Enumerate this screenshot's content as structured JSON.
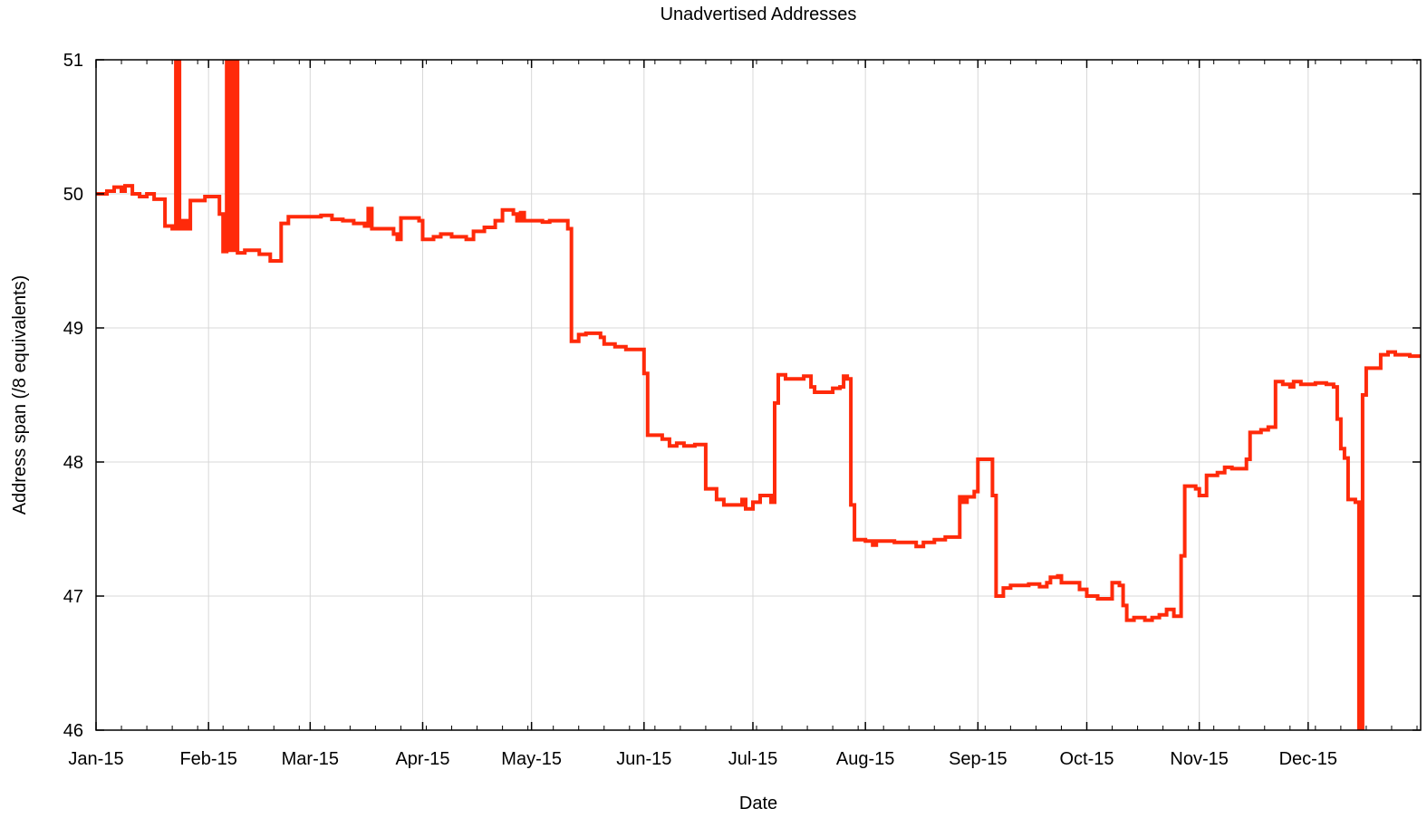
{
  "chart_data": {
    "type": "line",
    "title": "Unadvertised Addresses",
    "xlabel": "Date",
    "ylabel": "Address span (/8 equivalents)",
    "ylim": [
      46,
      51
    ],
    "xlim": [
      "2015-01-01",
      "2016-01-01"
    ],
    "yticks": [
      {
        "value": 46,
        "label": "46"
      },
      {
        "value": 47,
        "label": "47"
      },
      {
        "value": 48,
        "label": "48"
      },
      {
        "value": 49,
        "label": "49"
      },
      {
        "value": 50,
        "label": "50"
      },
      {
        "value": 51,
        "label": "51"
      }
    ],
    "xticks": [
      {
        "date": "2015-01-01",
        "label": "Jan-15"
      },
      {
        "date": "2015-02-01",
        "label": "Feb-15"
      },
      {
        "date": "2015-03-01",
        "label": "Mar-15"
      },
      {
        "date": "2015-04-01",
        "label": "Apr-15"
      },
      {
        "date": "2015-05-01",
        "label": "May-15"
      },
      {
        "date": "2015-06-01",
        "label": "Jun-15"
      },
      {
        "date": "2015-07-01",
        "label": "Jul-15"
      },
      {
        "date": "2015-08-01",
        "label": "Aug-15"
      },
      {
        "date": "2015-09-01",
        "label": "Sep-15"
      },
      {
        "date": "2015-10-01",
        "label": "Oct-15"
      },
      {
        "date": "2015-11-01",
        "label": "Nov-15"
      },
      {
        "date": "2015-12-01",
        "label": "Dec-15"
      }
    ],
    "grid": true,
    "step": true,
    "line_color": "#ff2a0a",
    "series": [
      {
        "points": [
          [
            "2015-01-01",
            50.0
          ],
          [
            "2015-01-04",
            50.02
          ],
          [
            "2015-01-06",
            50.05
          ],
          [
            "2015-01-08",
            50.02
          ],
          [
            "2015-01-09",
            50.06
          ],
          [
            "2015-01-11",
            50.0
          ],
          [
            "2015-01-13",
            49.98
          ],
          [
            "2015-01-15",
            50.0
          ],
          [
            "2015-01-17",
            49.96
          ],
          [
            "2015-01-20",
            49.76
          ],
          [
            "2015-01-22",
            49.74
          ],
          [
            "2015-01-23",
            51.0
          ],
          [
            "2015-01-24",
            49.74
          ],
          [
            "2015-01-25",
            49.8
          ],
          [
            "2015-01-26",
            49.74
          ],
          [
            "2015-01-27",
            49.95
          ],
          [
            "2015-01-31",
            49.98
          ],
          [
            "2015-02-04",
            49.85
          ],
          [
            "2015-02-05",
            49.57
          ],
          [
            "2015-02-06",
            51.0
          ],
          [
            "2015-02-07",
            49.58
          ],
          [
            "2015-02-08",
            51.0
          ],
          [
            "2015-02-09",
            49.56
          ],
          [
            "2015-02-11",
            49.58
          ],
          [
            "2015-02-15",
            49.55
          ],
          [
            "2015-02-18",
            49.5
          ],
          [
            "2015-02-21",
            49.78
          ],
          [
            "2015-02-23",
            49.83
          ],
          [
            "2015-03-04",
            49.84
          ],
          [
            "2015-03-07",
            49.81
          ],
          [
            "2015-03-10",
            49.8
          ],
          [
            "2015-03-13",
            49.78
          ],
          [
            "2015-03-16",
            49.76
          ],
          [
            "2015-03-17",
            49.89
          ],
          [
            "2015-03-18",
            49.74
          ],
          [
            "2015-03-24",
            49.7
          ],
          [
            "2015-03-25",
            49.66
          ],
          [
            "2015-03-26",
            49.82
          ],
          [
            "2015-03-31",
            49.8
          ],
          [
            "2015-04-01",
            49.66
          ],
          [
            "2015-04-04",
            49.68
          ],
          [
            "2015-04-06",
            49.7
          ],
          [
            "2015-04-09",
            49.68
          ],
          [
            "2015-04-13",
            49.66
          ],
          [
            "2015-04-15",
            49.72
          ],
          [
            "2015-04-18",
            49.75
          ],
          [
            "2015-04-21",
            49.8
          ],
          [
            "2015-04-23",
            49.88
          ],
          [
            "2015-04-26",
            49.85
          ],
          [
            "2015-04-27",
            49.8
          ],
          [
            "2015-04-28",
            49.86
          ],
          [
            "2015-04-29",
            49.8
          ],
          [
            "2015-05-04",
            49.79
          ],
          [
            "2015-05-06",
            49.8
          ],
          [
            "2015-05-11",
            49.74
          ],
          [
            "2015-05-12",
            48.9
          ],
          [
            "2015-05-14",
            48.95
          ],
          [
            "2015-05-16",
            48.96
          ],
          [
            "2015-05-20",
            48.93
          ],
          [
            "2015-05-21",
            48.88
          ],
          [
            "2015-05-24",
            48.86
          ],
          [
            "2015-05-27",
            48.84
          ],
          [
            "2015-06-01",
            48.66
          ],
          [
            "2015-06-02",
            48.2
          ],
          [
            "2015-06-06",
            48.17
          ],
          [
            "2015-06-08",
            48.12
          ],
          [
            "2015-06-10",
            48.14
          ],
          [
            "2015-06-12",
            48.12
          ],
          [
            "2015-06-15",
            48.13
          ],
          [
            "2015-06-18",
            47.8
          ],
          [
            "2015-06-21",
            47.72
          ],
          [
            "2015-06-23",
            47.68
          ],
          [
            "2015-06-28",
            47.72
          ],
          [
            "2015-06-29",
            47.65
          ],
          [
            "2015-07-01",
            47.7
          ],
          [
            "2015-07-03",
            47.75
          ],
          [
            "2015-07-06",
            47.7
          ],
          [
            "2015-07-07",
            48.44
          ],
          [
            "2015-07-08",
            48.65
          ],
          [
            "2015-07-10",
            48.62
          ],
          [
            "2015-07-15",
            48.64
          ],
          [
            "2015-07-17",
            48.56
          ],
          [
            "2015-07-18",
            48.52
          ],
          [
            "2015-07-23",
            48.55
          ],
          [
            "2015-07-25",
            48.56
          ],
          [
            "2015-07-26",
            48.64
          ],
          [
            "2015-07-27",
            48.62
          ],
          [
            "2015-07-28",
            47.68
          ],
          [
            "2015-07-29",
            47.42
          ],
          [
            "2015-08-01",
            47.41
          ],
          [
            "2015-08-03",
            47.38
          ],
          [
            "2015-08-04",
            47.41
          ],
          [
            "2015-08-09",
            47.4
          ],
          [
            "2015-08-15",
            47.37
          ],
          [
            "2015-08-17",
            47.4
          ],
          [
            "2015-08-20",
            47.42
          ],
          [
            "2015-08-23",
            47.44
          ],
          [
            "2015-08-27",
            47.74
          ],
          [
            "2015-08-28",
            47.7
          ],
          [
            "2015-08-29",
            47.74
          ],
          [
            "2015-08-31",
            47.78
          ],
          [
            "2015-09-01",
            48.02
          ],
          [
            "2015-09-05",
            47.75
          ],
          [
            "2015-09-06",
            47.0
          ],
          [
            "2015-09-08",
            47.06
          ],
          [
            "2015-09-10",
            47.08
          ],
          [
            "2015-09-15",
            47.09
          ],
          [
            "2015-09-18",
            47.07
          ],
          [
            "2015-09-20",
            47.1
          ],
          [
            "2015-09-21",
            47.14
          ],
          [
            "2015-09-23",
            47.15
          ],
          [
            "2015-09-24",
            47.1
          ],
          [
            "2015-09-29",
            47.05
          ],
          [
            "2015-10-01",
            47.0
          ],
          [
            "2015-10-04",
            46.98
          ],
          [
            "2015-10-08",
            47.1
          ],
          [
            "2015-10-10",
            47.08
          ],
          [
            "2015-10-11",
            46.93
          ],
          [
            "2015-10-12",
            46.82
          ],
          [
            "2015-10-14",
            46.84
          ],
          [
            "2015-10-17",
            46.82
          ],
          [
            "2015-10-19",
            46.84
          ],
          [
            "2015-10-21",
            46.86
          ],
          [
            "2015-10-23",
            46.9
          ],
          [
            "2015-10-25",
            46.85
          ],
          [
            "2015-10-27",
            47.3
          ],
          [
            "2015-10-28",
            47.82
          ],
          [
            "2015-10-31",
            47.8
          ],
          [
            "2015-11-01",
            47.75
          ],
          [
            "2015-11-03",
            47.9
          ],
          [
            "2015-11-06",
            47.92
          ],
          [
            "2015-11-08",
            47.96
          ],
          [
            "2015-11-10",
            47.95
          ],
          [
            "2015-11-14",
            48.02
          ],
          [
            "2015-11-15",
            48.22
          ],
          [
            "2015-11-18",
            48.24
          ],
          [
            "2015-11-20",
            48.26
          ],
          [
            "2015-11-22",
            48.6
          ],
          [
            "2015-11-24",
            48.58
          ],
          [
            "2015-11-26",
            48.56
          ],
          [
            "2015-11-27",
            48.6
          ],
          [
            "2015-11-29",
            48.58
          ],
          [
            "2015-12-03",
            48.59
          ],
          [
            "2015-12-06",
            48.58
          ],
          [
            "2015-12-08",
            48.56
          ],
          [
            "2015-12-09",
            48.32
          ],
          [
            "2015-12-10",
            48.1
          ],
          [
            "2015-12-11",
            48.03
          ],
          [
            "2015-12-12",
            47.72
          ],
          [
            "2015-12-14",
            47.7
          ],
          [
            "2015-12-15",
            46.0
          ],
          [
            "2015-12-16",
            48.5
          ],
          [
            "2015-12-17",
            48.7
          ],
          [
            "2015-12-21",
            48.8
          ],
          [
            "2015-12-23",
            48.82
          ],
          [
            "2015-12-25",
            48.8
          ],
          [
            "2015-12-29",
            48.79
          ],
          [
            "2016-01-01",
            48.78
          ]
        ]
      }
    ]
  }
}
